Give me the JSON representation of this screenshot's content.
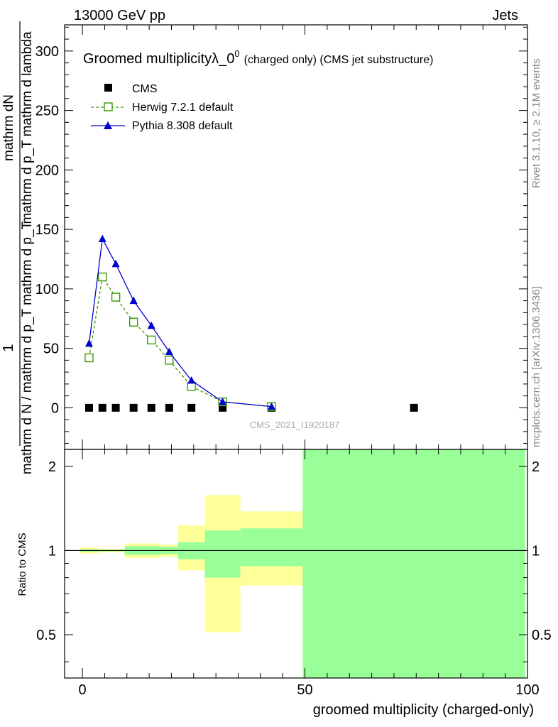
{
  "header": {
    "left": "13000 GeV pp",
    "right": "Jets"
  },
  "side_labels": {
    "rivet": "Rivet 3.1.10, ≥ 2.1M events",
    "mcplots": "mcplots.cern.ch [arXiv:1306.3436]"
  },
  "chart_data": [
    {
      "type": "line",
      "title_main": "Groomed multiplicityλ_0",
      "title_sup": "0",
      "title_suffix": "(charged only) (CMS jet substructure)",
      "ylabel_top": "1",
      "ylabel_line1": "mathrm dN",
      "ylabel_line2": "mathrm d p_T mathrm d lambda",
      "ylabel_bottom": "mathrm d N / mathrm d p_T mathrm d p_T",
      "watermark": "CMS_2021_I1920187",
      "xlim": [
        -4,
        100
      ],
      "ylim": [
        -35,
        322
      ],
      "yticks": [
        0,
        50,
        100,
        150,
        200,
        250,
        300
      ],
      "grid": false,
      "legend_position": "top-left",
      "series": [
        {
          "name": "CMS",
          "style": "markers",
          "marker": "filled-square",
          "color": "#000000",
          "points": [
            [
              1.5,
              0
            ],
            [
              4.5,
              0
            ],
            [
              7.5,
              0
            ],
            [
              11.5,
              0
            ],
            [
              15.5,
              0
            ],
            [
              19.5,
              0
            ],
            [
              24.5,
              0
            ],
            [
              31.5,
              0
            ],
            [
              42.5,
              0
            ],
            [
              74.5,
              0
            ]
          ]
        },
        {
          "name": "Herwig 7.2.1 default",
          "style": "dashed-line",
          "marker": "open-square",
          "color": "#3a9b00",
          "points": [
            [
              1.5,
              42
            ],
            [
              4.5,
              110
            ],
            [
              7.5,
              93
            ],
            [
              11.5,
              72
            ],
            [
              15.5,
              57
            ],
            [
              19.5,
              40
            ],
            [
              24.5,
              18
            ],
            [
              31.5,
              5
            ],
            [
              42.5,
              1
            ]
          ]
        },
        {
          "name": "Pythia 8.308 default",
          "style": "solid-line",
          "marker": "filled-triangle",
          "color": "#0000cc",
          "points": [
            [
              1.5,
              54
            ],
            [
              4.5,
              142
            ],
            [
              7.5,
              121
            ],
            [
              11.5,
              90
            ],
            [
              15.5,
              69
            ],
            [
              19.5,
              47
            ],
            [
              24.5,
              23
            ],
            [
              31.5,
              5
            ],
            [
              42.5,
              1
            ]
          ]
        }
      ]
    },
    {
      "type": "area",
      "ylabel": "Ratio to CMS",
      "xlabel": "groomed multiplicity (charged-only)",
      "xlim": [
        -4,
        100
      ],
      "ylim": [
        0.35,
        2.3
      ],
      "xticks": [
        0,
        50,
        100
      ],
      "yticks": [
        0.5,
        1,
        2
      ],
      "reference_line": 1,
      "colors": {
        "outer": "#ffff99",
        "inner": "#99ff99"
      },
      "bins": [
        {
          "x0": -0.5,
          "x1": 3.5,
          "outer": [
            0.975,
            1.025
          ],
          "inner": [
            0.99,
            1.01
          ]
        },
        {
          "x0": 3.5,
          "x1": 9.5,
          "outer": [
            0.985,
            1.015
          ],
          "inner": [
            0.993,
            1.007
          ]
        },
        {
          "x0": 9.5,
          "x1": 17.5,
          "outer": [
            0.94,
            1.06
          ],
          "inner": [
            0.965,
            1.035
          ]
        },
        {
          "x0": 17.5,
          "x1": 21.5,
          "outer": [
            0.95,
            1.05
          ],
          "inner": [
            0.97,
            1.03
          ]
        },
        {
          "x0": 21.5,
          "x1": 27.5,
          "outer": [
            0.85,
            1.23
          ],
          "inner": [
            0.93,
            1.07
          ]
        },
        {
          "x0": 27.5,
          "x1": 35.5,
          "outer": [
            0.51,
            1.58
          ],
          "inner": [
            0.8,
            1.18
          ]
        },
        {
          "x0": 35.5,
          "x1": 49.5,
          "outer": [
            0.75,
            1.38
          ],
          "inner": [
            0.88,
            1.2
          ]
        },
        {
          "x0": 49.5,
          "x1": 99.5,
          "outer": [
            0.2,
            2.5
          ],
          "inner": [
            0.2,
            2.5
          ]
        }
      ]
    }
  ]
}
